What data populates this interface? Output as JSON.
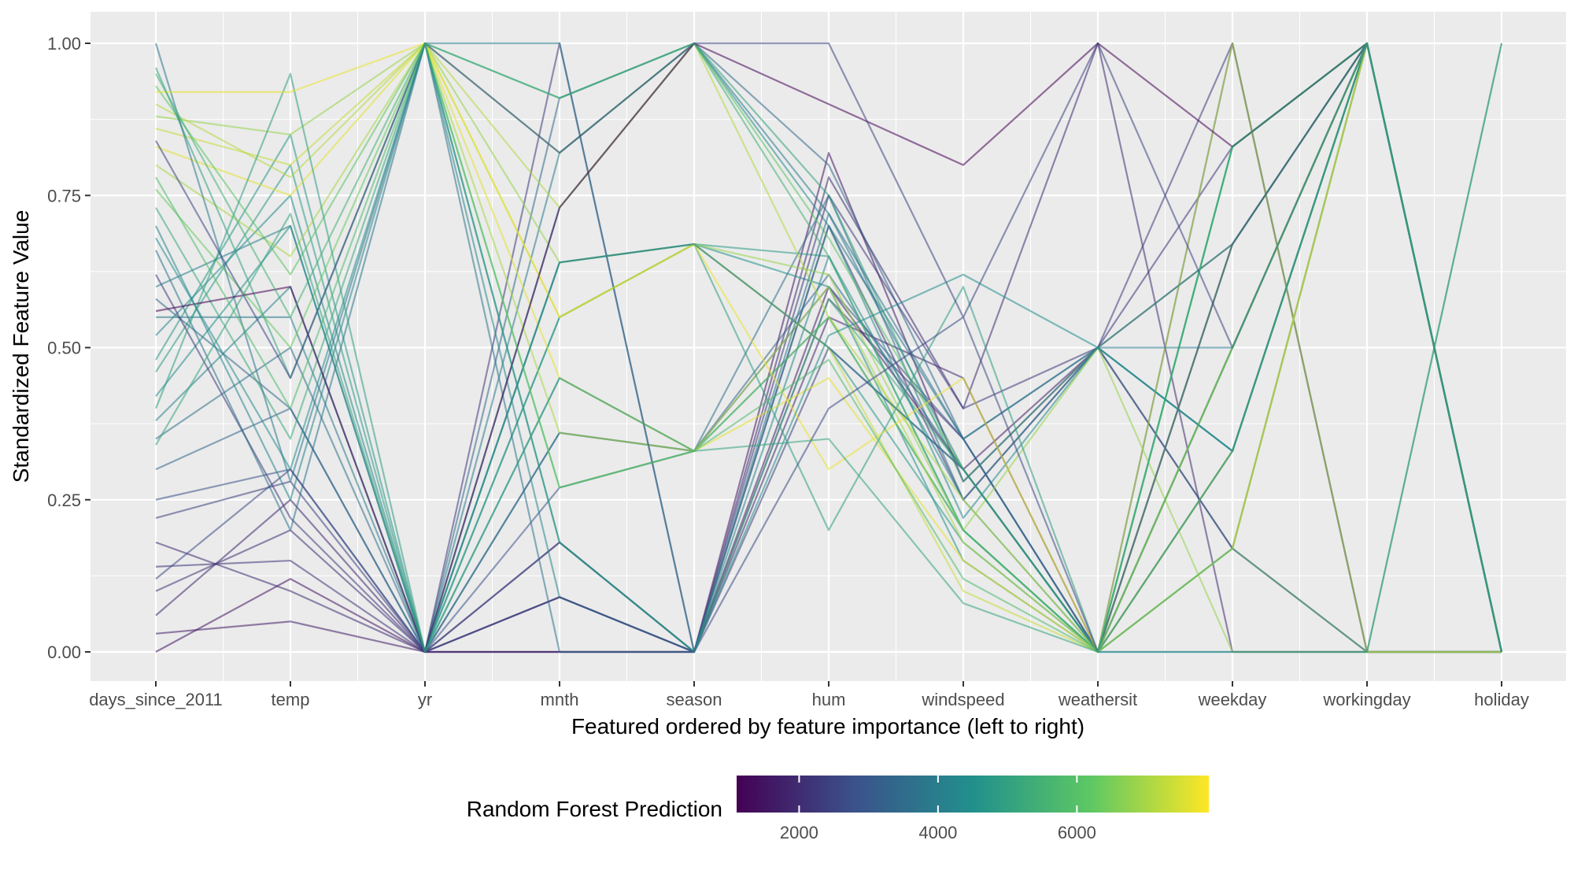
{
  "chart_data": {
    "type": "parallel_coordinates",
    "title": "",
    "xlabel": "Featured ordered by feature importance (left to right)",
    "ylabel": "Standardized Feature Value",
    "ylim": [
      0,
      1
    ],
    "y_ticks": [
      "0.00",
      "0.25",
      "0.50",
      "0.75",
      "1.00"
    ],
    "y_tick_values": [
      0,
      0.25,
      0.5,
      0.75,
      1.0
    ],
    "categories": [
      "days_since_2011",
      "temp",
      "yr",
      "mnth",
      "season",
      "hum",
      "windspeed",
      "weathersit",
      "weekday",
      "workingday",
      "holiday"
    ],
    "grid": true,
    "legend": {
      "title": "Random Forest Prediction",
      "placement": "bottom",
      "range": [
        1100,
        7900
      ],
      "ticks": [
        2000,
        4000,
        6000
      ],
      "tick_labels": [
        "2000",
        "4000",
        "6000"
      ],
      "palette": [
        "#440154",
        "#3b528b",
        "#21908c",
        "#5dc863",
        "#fde725"
      ]
    },
    "series": [
      {
        "values": [
          0.0,
          0.12,
          0.0,
          0.0,
          0.0,
          0.82,
          0.28,
          0.5,
          0.17,
          0.0,
          0.0
        ],
        "prediction": 1500
      },
      {
        "values": [
          0.03,
          0.05,
          0.0,
          0.0,
          0.0,
          0.6,
          0.3,
          0.5,
          0.67,
          1.0,
          0.0
        ],
        "prediction": 1700
      },
      {
        "values": [
          0.06,
          0.25,
          0.0,
          0.09,
          0.0,
          0.55,
          0.45,
          0.0,
          0.5,
          1.0,
          0.0
        ],
        "prediction": 1900
      },
      {
        "values": [
          0.1,
          0.2,
          0.0,
          0.09,
          0.0,
          0.58,
          0.35,
          0.0,
          0.33,
          1.0,
          0.0
        ],
        "prediction": 2100
      },
      {
        "values": [
          0.14,
          0.15,
          0.0,
          0.18,
          0.0,
          0.7,
          0.25,
          0.5,
          0.83,
          1.0,
          0.0
        ],
        "prediction": 2200
      },
      {
        "values": [
          0.18,
          0.1,
          0.0,
          0.0,
          0.0,
          0.78,
          0.4,
          1.0,
          0.0,
          0.0,
          0.0
        ],
        "prediction": 2000
      },
      {
        "values": [
          0.22,
          0.28,
          0.0,
          0.18,
          0.0,
          0.5,
          0.3,
          0.0,
          1.0,
          0.0,
          0.0
        ],
        "prediction": 2400
      },
      {
        "values": [
          0.25,
          0.3,
          0.0,
          0.27,
          0.33,
          0.6,
          0.35,
          0.0,
          0.5,
          1.0,
          0.0
        ],
        "prediction": 2800
      },
      {
        "values": [
          0.3,
          0.4,
          0.0,
          0.36,
          0.33,
          0.62,
          0.3,
          0.0,
          0.17,
          1.0,
          0.0
        ],
        "prediction": 3300
      },
      {
        "values": [
          0.35,
          0.5,
          0.0,
          0.36,
          0.33,
          0.75,
          0.25,
          0.5,
          0.33,
          1.0,
          0.0
        ],
        "prediction": 3600
      },
      {
        "values": [
          0.38,
          0.6,
          0.0,
          0.45,
          0.33,
          0.55,
          0.2,
          0.0,
          0.67,
          1.0,
          0.0
        ],
        "prediction": 4100
      },
      {
        "values": [
          0.42,
          0.7,
          0.0,
          0.55,
          0.67,
          0.6,
          0.15,
          0.0,
          0.83,
          1.0,
          0.0
        ],
        "prediction": 4500
      },
      {
        "values": [
          0.46,
          0.8,
          0.0,
          0.55,
          0.67,
          0.65,
          0.2,
          0.0,
          0.5,
          1.0,
          0.0
        ],
        "prediction": 4800
      },
      {
        "values": [
          0.48,
          0.85,
          0.0,
          0.64,
          0.67,
          0.5,
          0.18,
          0.0,
          0.0,
          0.0,
          0.0
        ],
        "prediction": 4700
      },
      {
        "values": [
          0.52,
          0.75,
          0.0,
          0.73,
          1.0,
          0.7,
          0.22,
          0.5,
          0.33,
          1.0,
          0.0
        ],
        "prediction": 4300
      },
      {
        "values": [
          0.55,
          0.55,
          0.0,
          0.82,
          1.0,
          0.72,
          0.3,
          0.0,
          0.67,
          1.0,
          0.0
        ],
        "prediction": 3900
      },
      {
        "values": [
          0.58,
          0.4,
          0.0,
          0.91,
          1.0,
          0.8,
          0.35,
          0.5,
          0.17,
          1.0,
          0.0
        ],
        "prediction": 3400
      },
      {
        "values": [
          0.62,
          0.22,
          0.0,
          1.0,
          0.0,
          0.75,
          0.4,
          0.5,
          1.0,
          0.0,
          0.0
        ],
        "prediction": 2300
      },
      {
        "values": [
          0.66,
          0.2,
          1.0,
          0.0,
          0.0,
          0.7,
          0.35,
          0.0,
          0.5,
          1.0,
          0.0
        ],
        "prediction": 3700
      },
      {
        "values": [
          0.7,
          0.25,
          1.0,
          0.09,
          0.0,
          0.65,
          0.25,
          0.0,
          0.33,
          1.0,
          0.0
        ],
        "prediction": 4200
      },
      {
        "values": [
          0.73,
          0.35,
          1.0,
          0.18,
          0.0,
          0.58,
          0.3,
          0.0,
          0.83,
          1.0,
          0.0
        ],
        "prediction": 5200
      },
      {
        "values": [
          0.76,
          0.5,
          1.0,
          0.27,
          0.33,
          0.55,
          0.2,
          0.0,
          0.17,
          1.0,
          0.0
        ],
        "prediction": 6300
      },
      {
        "values": [
          0.8,
          0.65,
          1.0,
          0.36,
          0.33,
          0.6,
          0.18,
          0.0,
          0.67,
          1.0,
          0.0
        ],
        "prediction": 7000
      },
      {
        "values": [
          0.83,
          0.75,
          1.0,
          0.45,
          0.33,
          0.45,
          0.15,
          0.0,
          0.5,
          1.0,
          0.0
        ],
        "prediction": 7600
      },
      {
        "values": [
          0.86,
          0.8,
          1.0,
          0.55,
          0.67,
          0.5,
          0.1,
          0.0,
          0.33,
          1.0,
          0.0
        ],
        "prediction": 7300
      },
      {
        "values": [
          0.88,
          0.85,
          1.0,
          0.64,
          0.67,
          0.62,
          0.2,
          0.5,
          0.0,
          0.0,
          0.0
        ],
        "prediction": 6800
      },
      {
        "values": [
          0.9,
          0.78,
          1.0,
          0.73,
          1.0,
          0.55,
          0.25,
          0.0,
          1.0,
          0.0,
          0.0
        ],
        "prediction": 7100
      },
      {
        "values": [
          0.93,
          0.62,
          1.0,
          0.82,
          1.0,
          0.68,
          0.3,
          0.0,
          0.83,
          1.0,
          0.0
        ],
        "prediction": 6100
      },
      {
        "values": [
          0.96,
          0.45,
          1.0,
          0.91,
          1.0,
          0.75,
          0.28,
          0.5,
          0.67,
          1.0,
          0.0
        ],
        "prediction": 5000
      },
      {
        "values": [
          1.0,
          0.28,
          1.0,
          1.0,
          0.0,
          0.72,
          0.35,
          0.5,
          0.5,
          1.0,
          0.0
        ],
        "prediction": 3800
      },
      {
        "values": [
          0.4,
          0.95,
          0.0,
          0.64,
          0.67,
          0.2,
          0.6,
          0.0,
          0.33,
          1.0,
          0.0
        ],
        "prediction": 4900
      },
      {
        "values": [
          0.92,
          0.92,
          1.0,
          0.55,
          0.67,
          0.3,
          0.45,
          0.0,
          0.17,
          1.0,
          0.0
        ],
        "prediction": 7700
      },
      {
        "values": [
          0.56,
          0.6,
          0.0,
          0.73,
          1.0,
          0.9,
          0.8,
          1.0,
          0.83,
          1.0,
          0.0
        ],
        "prediction": 1100
      },
      {
        "values": [
          0.84,
          0.45,
          1.0,
          0.82,
          1.0,
          1.0,
          0.55,
          1.0,
          0.5,
          1.0,
          0.0
        ],
        "prediction": 2500
      },
      {
        "values": [
          0.6,
          0.7,
          0.0,
          0.64,
          0.67,
          0.5,
          0.3,
          0.0,
          0.0,
          0.0,
          1.0
        ],
        "prediction": 4000
      },
      {
        "values": [
          0.95,
          0.55,
          1.0,
          0.91,
          1.0,
          0.65,
          0.2,
          0.0,
          0.17,
          0.0,
          1.0
        ],
        "prediction": 5500
      },
      {
        "values": [
          0.12,
          0.3,
          0.0,
          0.09,
          0.0,
          0.4,
          0.55,
          0.0,
          0.67,
          1.0,
          0.0
        ],
        "prediction": 2600
      },
      {
        "values": [
          0.78,
          0.4,
          1.0,
          0.27,
          0.33,
          0.48,
          0.12,
          0.0,
          0.5,
          1.0,
          0.0
        ],
        "prediction": 5800
      },
      {
        "values": [
          0.68,
          0.3,
          1.0,
          0.18,
          0.0,
          0.52,
          0.62,
          0.5,
          0.33,
          1.0,
          0.0
        ],
        "prediction": 4400
      },
      {
        "values": [
          0.34,
          0.72,
          0.0,
          0.45,
          0.33,
          0.35,
          0.08,
          0.0,
          0.83,
          1.0,
          0.0
        ],
        "prediction": 5100
      }
    ]
  }
}
